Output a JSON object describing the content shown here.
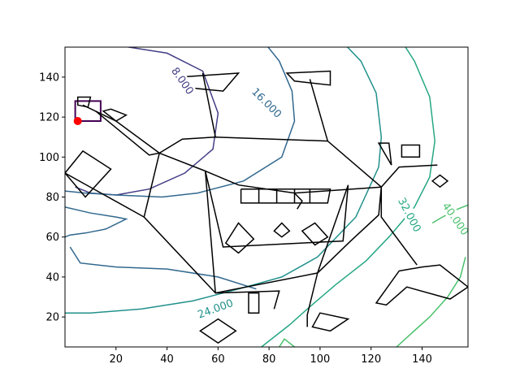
{
  "chart_data": {
    "type": "contour",
    "title": "",
    "xlabel": "",
    "ylabel": "",
    "xlim": [
      0,
      158
    ],
    "ylim": [
      5,
      155
    ],
    "grid": false,
    "x_ticks": [
      "20",
      "40",
      "60",
      "80",
      "100",
      "120",
      "140"
    ],
    "y_ticks": [
      "20",
      "40",
      "60",
      "80",
      "100",
      "120",
      "140"
    ],
    "contour_levels": [
      {
        "label": "8.000",
        "value": 8,
        "color": "#433e85"
      },
      {
        "label": "16.000",
        "value": 16,
        "color": "#31688e"
      },
      {
        "label": "24.000",
        "value": 24,
        "color": "#21918c"
      },
      {
        "label": "32.000",
        "value": 32,
        "color": "#26a784"
      },
      {
        "label": "40.000",
        "value": 40,
        "color": "#4ac16d"
      }
    ],
    "marker": {
      "x": 5,
      "y": 118,
      "color": "#ff0000"
    },
    "contour_lines": [
      {
        "name": "level-0",
        "color": "#440154",
        "points": [
          [
            4,
            128
          ],
          [
            14,
            128
          ],
          [
            14,
            118
          ],
          [
            4,
            118
          ]
        ],
        "closed": true
      },
      {
        "name": "level-8",
        "color": "#433e85",
        "points": [
          [
            3,
            156
          ],
          [
            10,
            158
          ],
          [
            40,
            152
          ],
          [
            54,
            143
          ],
          [
            60,
            122
          ],
          [
            58,
            104
          ],
          [
            47,
            92
          ],
          [
            33,
            84
          ],
          [
            20,
            81
          ],
          [
            10,
            82
          ],
          [
            4,
            85
          ]
        ]
      },
      {
        "name": "level-16-top",
        "color": "#31688e",
        "points": [
          [
            79,
            156
          ],
          [
            84,
            148
          ],
          [
            89,
            133
          ],
          [
            90,
            118
          ],
          [
            85,
            100
          ],
          [
            70,
            88
          ],
          [
            52,
            82
          ],
          [
            38,
            80
          ],
          [
            20,
            81
          ],
          [
            8,
            82
          ],
          [
            0,
            83
          ]
        ]
      },
      {
        "name": "level-16-left",
        "color": "#31688e",
        "points": [
          [
            0,
            75
          ],
          [
            10,
            72
          ],
          [
            20,
            70
          ],
          [
            24,
            69
          ],
          [
            16,
            64
          ],
          [
            8,
            62
          ],
          [
            2,
            61
          ],
          [
            0,
            60
          ]
        ]
      },
      {
        "name": "level-16-bottom",
        "color": "#31688e",
        "points": [
          [
            2,
            55
          ],
          [
            6,
            47
          ],
          [
            20,
            45
          ],
          [
            40,
            44
          ],
          [
            60,
            40
          ],
          [
            75,
            34
          ]
        ]
      },
      {
        "name": "level-24",
        "color": "#21918c",
        "points": [
          [
            110,
            156
          ],
          [
            116,
            148
          ],
          [
            122,
            132
          ],
          [
            124,
            110
          ],
          [
            123,
            95
          ],
          [
            114,
            70
          ],
          [
            99,
            50
          ],
          [
            85,
            40
          ],
          [
            68,
            34
          ],
          [
            50,
            28
          ],
          [
            30,
            24
          ],
          [
            10,
            22
          ],
          [
            0,
            22
          ]
        ]
      },
      {
        "name": "level-32",
        "color": "#26a784",
        "points": [
          [
            133,
            156
          ],
          [
            137,
            148
          ],
          [
            143,
            130
          ],
          [
            145,
            108
          ],
          [
            143,
            90
          ],
          [
            137,
            75
          ],
          [
            127,
            60
          ],
          [
            118,
            48
          ],
          [
            106,
            36
          ],
          [
            95,
            24
          ],
          [
            88,
            16
          ],
          [
            80,
            8
          ],
          [
            76,
            4
          ]
        ]
      },
      {
        "name": "level-40-right",
        "color": "#4ac16d",
        "points": [
          [
            158,
            76
          ],
          [
            154,
            74
          ],
          [
            148,
            70
          ],
          [
            144,
            67
          ]
        ]
      },
      {
        "name": "level-40-bottom",
        "color": "#4ac16d",
        "points": [
          [
            157,
            50
          ],
          [
            155,
            40
          ],
          [
            150,
            30
          ],
          [
            143,
            20
          ],
          [
            136,
            12
          ],
          [
            130,
            5
          ]
        ]
      },
      {
        "name": "level-40-small",
        "color": "#4ac16d",
        "points": [
          [
            90,
            5
          ],
          [
            86,
            9
          ],
          [
            84,
            5
          ]
        ]
      }
    ],
    "obstacles": [
      {
        "name": "polygon-top-left",
        "points": [
          [
            45,
            140
          ],
          [
            68,
            142
          ],
          [
            62,
            133
          ],
          [
            46,
            135
          ]
        ]
      },
      {
        "name": "polygon-top-right",
        "points": [
          [
            87,
            142
          ],
          [
            104,
            143
          ],
          [
            104,
            136
          ],
          [
            90,
            138
          ]
        ]
      },
      {
        "name": "polygon-left-diamond",
        "points": [
          [
            0,
            92
          ],
          [
            7,
            103
          ],
          [
            18,
            94
          ],
          [
            8,
            80
          ]
        ]
      },
      {
        "name": "polygon-center-left-small",
        "points": [
          [
            63,
            57
          ],
          [
            68,
            67
          ],
          [
            74,
            59
          ],
          [
            68,
            52
          ]
        ]
      },
      {
        "name": "polygon-center-small",
        "points": [
          [
            82,
            63
          ],
          [
            85,
            67
          ],
          [
            88,
            63
          ],
          [
            85,
            60
          ]
        ]
      },
      {
        "name": "polygon-center-right-small",
        "points": [
          [
            93,
            63
          ],
          [
            98,
            67
          ],
          [
            103,
            60
          ],
          [
            98,
            56
          ]
        ]
      },
      {
        "name": "polygon-right-rect",
        "points": [
          [
            132,
            106
          ],
          [
            139,
            106
          ],
          [
            139,
            100
          ],
          [
            132,
            100
          ]
        ]
      },
      {
        "name": "polygon-right-triangle",
        "points": [
          [
            123,
            107
          ],
          [
            127,
            107
          ],
          [
            128,
            96
          ]
        ]
      },
      {
        "name": "polygon-right-diamond",
        "points": [
          [
            144,
            88
          ],
          [
            147,
            91
          ],
          [
            150,
            88
          ],
          [
            147,
            85
          ]
        ]
      },
      {
        "name": "polygon-bottom-center",
        "points": [
          [
            72,
            32
          ],
          [
            76,
            32
          ],
          [
            76,
            22
          ],
          [
            72,
            22
          ]
        ]
      },
      {
        "name": "polygon-bottom-diamond",
        "points": [
          [
            53,
            13
          ],
          [
            60,
            19
          ],
          [
            67,
            13
          ],
          [
            60,
            7
          ]
        ]
      },
      {
        "name": "polygon-bottom-right-quad",
        "points": [
          [
            100,
            22
          ],
          [
            111,
            19
          ],
          [
            104,
            13
          ],
          [
            97,
            15
          ]
        ]
      },
      {
        "name": "polygon-right-bottom-tri",
        "points": [
          [
            131,
            43
          ],
          [
            140,
            45
          ],
          [
            147,
            46
          ],
          [
            158,
            35
          ],
          [
            151,
            29
          ],
          [
            134,
            35
          ],
          [
            126,
            26
          ],
          [
            122,
            27
          ]
        ]
      },
      {
        "name": "polygon-left-small",
        "points": [
          [
            5,
            130
          ],
          [
            10,
            130
          ],
          [
            9,
            125
          ],
          [
            5,
            126
          ]
        ]
      },
      {
        "name": "polygon-left-small-2",
        "points": [
          [
            15,
            123
          ],
          [
            20,
            118
          ],
          [
            24,
            121
          ],
          [
            18,
            124
          ]
        ]
      }
    ],
    "edges": [
      [
        [
          37,
          102
        ],
        [
          46,
          109
        ],
        [
          59,
          110
        ],
        [
          103,
          108
        ],
        [
          124,
          85
        ]
      ],
      [
        [
          37,
          102
        ],
        [
          31,
          70
        ],
        [
          59,
          32
        ],
        [
          99,
          42
        ],
        [
          112,
          58
        ],
        [
          123,
          71
        ],
        [
          124,
          85
        ]
      ],
      [
        [
          37,
          102
        ],
        [
          55,
          93
        ],
        [
          68,
          86
        ],
        [
          90,
          82
        ],
        [
          124,
          85
        ]
      ],
      [
        [
          55,
          93
        ],
        [
          59,
          32
        ]
      ],
      [
        [
          55,
          93
        ],
        [
          62,
          55
        ],
        [
          109,
          58
        ],
        [
          111,
          86
        ],
        [
          99,
          42
        ]
      ],
      [
        [
          124,
          85
        ],
        [
          131,
          95
        ],
        [
          146,
          96
        ]
      ],
      [
        [
          124,
          85
        ],
        [
          124,
          70
        ],
        [
          138,
          46
        ]
      ],
      [
        [
          37,
          102
        ],
        [
          20,
          118
        ],
        [
          7,
          126
        ]
      ],
      [
        [
          37,
          102
        ],
        [
          33,
          101
        ],
        [
          12,
          123
        ]
      ],
      [
        [
          31,
          70
        ],
        [
          0,
          92
        ]
      ],
      [
        [
          59,
          32
        ],
        [
          84,
          33
        ],
        [
          82,
          24
        ]
      ],
      [
        [
          99,
          42
        ],
        [
          95,
          21
        ],
        [
          95,
          15
        ]
      ],
      [
        [
          59,
          110
        ],
        [
          54,
          142
        ]
      ],
      [
        [
          103,
          108
        ],
        [
          96,
          139
        ]
      ],
      [
        [
          90,
          82
        ],
        [
          93,
          78
        ],
        [
          91,
          74
        ]
      ],
      [
        [
          69,
          84
        ],
        [
          69,
          77
        ],
        [
          103,
          77
        ],
        [
          104,
          84
        ],
        [
          69,
          84
        ]
      ],
      [
        [
          76,
          84
        ],
        [
          76,
          77
        ]
      ],
      [
        [
          83,
          84
        ],
        [
          83,
          77
        ]
      ],
      [
        [
          90,
          84
        ],
        [
          90,
          77
        ]
      ],
      [
        [
          96,
          84
        ],
        [
          96,
          77
        ]
      ]
    ]
  }
}
